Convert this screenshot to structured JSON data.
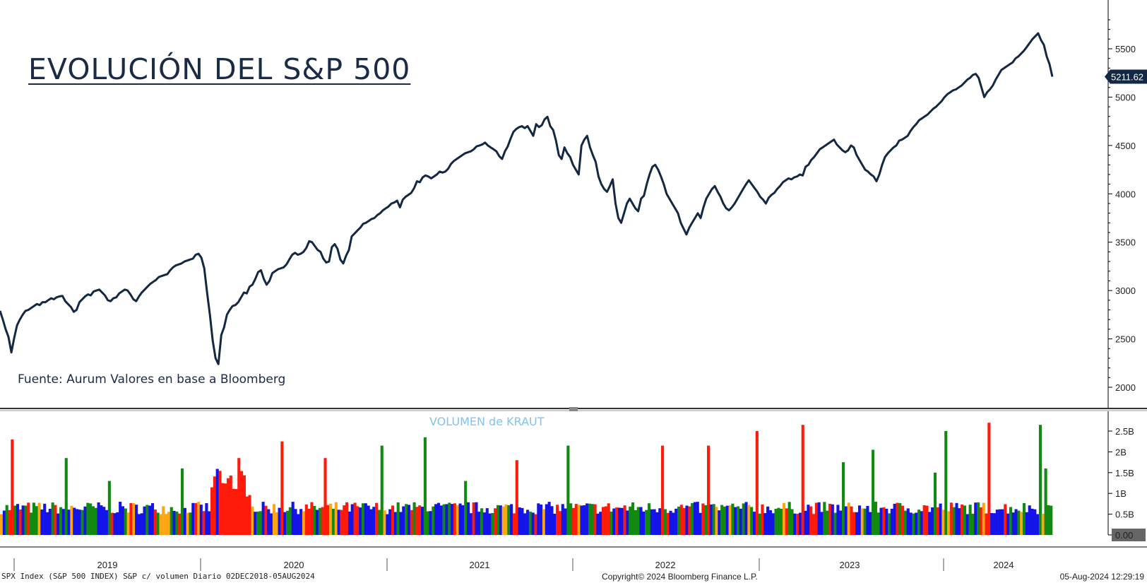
{
  "title": "EVOLUCIÓN DEL S&P 500",
  "source_note": "Fuente: Aurum Valores en base a Bloomberg",
  "volume_label": "VOLUMEN de KRAUT",
  "footer": {
    "left": "SPX Index (S&P 500 INDEX) S&P c/ volumen  Diario 02DEC2018-05AUG2024",
    "center": "Copyright© 2024 Bloomberg Finance L.P.",
    "right": "05-Aug-2024 12:29:19"
  },
  "colors": {
    "line": "#132842",
    "vol_blue": "#1414e8",
    "vol_green": "#128a12",
    "vol_red": "#ff1a0a",
    "vol_orange": "#ffa614",
    "last_badge": "#132842"
  },
  "chart_data": [
    {
      "type": "line",
      "series": [
        {
          "values": [
            2790,
            2700,
            2600,
            2520,
            2360,
            2510,
            2640,
            2700,
            2750,
            2790,
            2800,
            2820,
            2840,
            2860,
            2850,
            2880,
            2880,
            2900,
            2920,
            2910,
            2930,
            2940,
            2945,
            2890,
            2860,
            2830,
            2780,
            2800,
            2880,
            2910,
            2940,
            2960,
            2950,
            2990,
            3000,
            3010,
            2980,
            2950,
            2900,
            2890,
            2920,
            2930,
            2970,
            2990,
            3010,
            3000,
            2960,
            2910,
            2890,
            2940,
            2980,
            3010,
            3040,
            3070,
            3090,
            3110,
            3140,
            3150,
            3160,
            3170,
            3210,
            3240,
            3260,
            3270,
            3280,
            3300,
            3310,
            3320,
            3330,
            3370,
            3380,
            3340,
            3230,
            2980,
            2750,
            2480,
            2300,
            2240,
            2540,
            2620,
            2750,
            2800,
            2840,
            2850,
            2880,
            2930,
            2980,
            2970,
            3040,
            3060,
            3120,
            3190,
            3210,
            3120,
            3060,
            3100,
            3180,
            3200,
            3220,
            3230,
            3240,
            3270,
            3320,
            3370,
            3390,
            3370,
            3380,
            3400,
            3440,
            3510,
            3500,
            3460,
            3420,
            3400,
            3330,
            3290,
            3300,
            3450,
            3480,
            3430,
            3320,
            3280,
            3360,
            3420,
            3560,
            3590,
            3620,
            3650,
            3690,
            3700,
            3720,
            3740,
            3750,
            3780,
            3800,
            3830,
            3850,
            3870,
            3900,
            3910,
            3930,
            3860,
            3940,
            3970,
            3990,
            4010,
            4060,
            4130,
            4120,
            4170,
            4190,
            4180,
            4160,
            4180,
            4200,
            4230,
            4220,
            4230,
            4260,
            4310,
            4340,
            4360,
            4380,
            4400,
            4420,
            4430,
            4440,
            4460,
            4490,
            4500,
            4510,
            4530,
            4500,
            4480,
            4460,
            4440,
            4390,
            4360,
            4440,
            4490,
            4570,
            4640,
            4670,
            4690,
            4700,
            4680,
            4700,
            4650,
            4600,
            4720,
            4690,
            4710,
            4770,
            4796,
            4700,
            4660,
            4550,
            4400,
            4360,
            4480,
            4420,
            4380,
            4300,
            4250,
            4200,
            4500,
            4560,
            4600,
            4480,
            4400,
            4330,
            4180,
            4100,
            4050,
            4020,
            4080,
            4150,
            3900,
            3750,
            3700,
            3800,
            3900,
            3950,
            3900,
            3850,
            3820,
            3950,
            3980,
            4100,
            4200,
            4280,
            4300,
            4250,
            4180,
            4100,
            4000,
            3950,
            3900,
            3850,
            3800,
            3700,
            3640,
            3580,
            3650,
            3700,
            3750,
            3800,
            3750,
            3860,
            3950,
            4000,
            4050,
            4080,
            4020,
            3970,
            3900,
            3850,
            3830,
            3860,
            3900,
            3950,
            4000,
            4050,
            4100,
            4140,
            4100,
            4060,
            4020,
            3970,
            3940,
            3900,
            3960,
            3990,
            4010,
            4050,
            4080,
            4120,
            4140,
            4160,
            4150,
            4170,
            4180,
            4200,
            4190,
            4280,
            4300,
            4350,
            4380,
            4420,
            4460,
            4480,
            4500,
            4520,
            4540,
            4560,
            4510,
            4480,
            4450,
            4430,
            4450,
            4500,
            4480,
            4400,
            4350,
            4300,
            4250,
            4230,
            4200,
            4180,
            4130,
            4200,
            4300,
            4380,
            4420,
            4450,
            4480,
            4500,
            4550,
            4560,
            4580,
            4600,
            4650,
            4690,
            4720,
            4760,
            4780,
            4800,
            4820,
            4850,
            4880,
            4900,
            4930,
            4960,
            5000,
            5030,
            5050,
            5070,
            5080,
            5100,
            5120,
            5150,
            5180,
            5200,
            5230,
            5240,
            5200,
            5100,
            5000,
            5050,
            5080,
            5120,
            5180,
            5230,
            5280,
            5300,
            5320,
            5340,
            5360,
            5400,
            5420,
            5450,
            5480,
            5520,
            5560,
            5600,
            5630,
            5660,
            5590,
            5540,
            5420,
            5340,
            5211.62
          ]
        }
      ],
      "x_start": "2018-12-02",
      "x_end": "2024-08-05",
      "x_tick_labels": [
        "2019",
        "2020",
        "2021",
        "2022",
        "2023",
        "2024"
      ],
      "y_ticks": [
        2000,
        2500,
        3000,
        3500,
        4000,
        4500,
        5000,
        5500
      ],
      "y_tick_labels": [
        "2000",
        "2500",
        "3000",
        "3500",
        "4000",
        "4500",
        "5000",
        "5500"
      ],
      "ylim": [
        1950,
        5960
      ],
      "last_value": 5211.62,
      "last_value_label": "5211.62",
      "grid": false
    },
    {
      "type": "bar",
      "y_ticks": [
        0,
        0.5,
        1,
        1.5,
        2,
        2.5
      ],
      "y_tick_labels": [
        "0.00",
        "0.5B",
        "1B",
        "1.5B",
        "2B",
        "2.5B"
      ],
      "ylim": [
        0,
        2.95
      ],
      "series": [
        {
          "spikes": [
            {
              "i": 4,
              "v": 2.3,
              "c": "r"
            },
            {
              "i": 24,
              "v": 1.85,
              "c": "g"
            },
            {
              "i": 40,
              "v": 1.3,
              "c": "g"
            },
            {
              "i": 67,
              "v": 1.6,
              "c": "g"
            },
            {
              "i": 88,
              "v": 1.85,
              "c": "r"
            },
            {
              "i": 104,
              "v": 2.25,
              "c": "r"
            },
            {
              "i": 120,
              "v": 1.85,
              "c": "r"
            },
            {
              "i": 141,
              "v": 2.15,
              "c": "g"
            },
            {
              "i": 157,
              "v": 2.35,
              "c": "g"
            },
            {
              "i": 172,
              "v": 1.3,
              "c": "g"
            },
            {
              "i": 191,
              "v": 1.8,
              "c": "r"
            },
            {
              "i": 210,
              "v": 2.15,
              "c": "g"
            },
            {
              "i": 245,
              "v": 2.15,
              "c": "r"
            },
            {
              "i": 262,
              "v": 2.15,
              "c": "r"
            },
            {
              "i": 280,
              "v": 2.5,
              "c": "r"
            },
            {
              "i": 297,
              "v": 2.65,
              "c": "r"
            },
            {
              "i": 312,
              "v": 1.75,
              "c": "g"
            },
            {
              "i": 323,
              "v": 2.05,
              "c": "g"
            },
            {
              "i": 346,
              "v": 1.5,
              "c": "g"
            },
            {
              "i": 350,
              "v": 2.5,
              "c": "g"
            },
            {
              "i": 366,
              "v": 2.7,
              "c": "r"
            },
            {
              "i": 385,
              "v": 2.65,
              "c": "g"
            },
            {
              "i": 387,
              "v": 1.6,
              "c": "g"
            }
          ]
        }
      ]
    }
  ]
}
